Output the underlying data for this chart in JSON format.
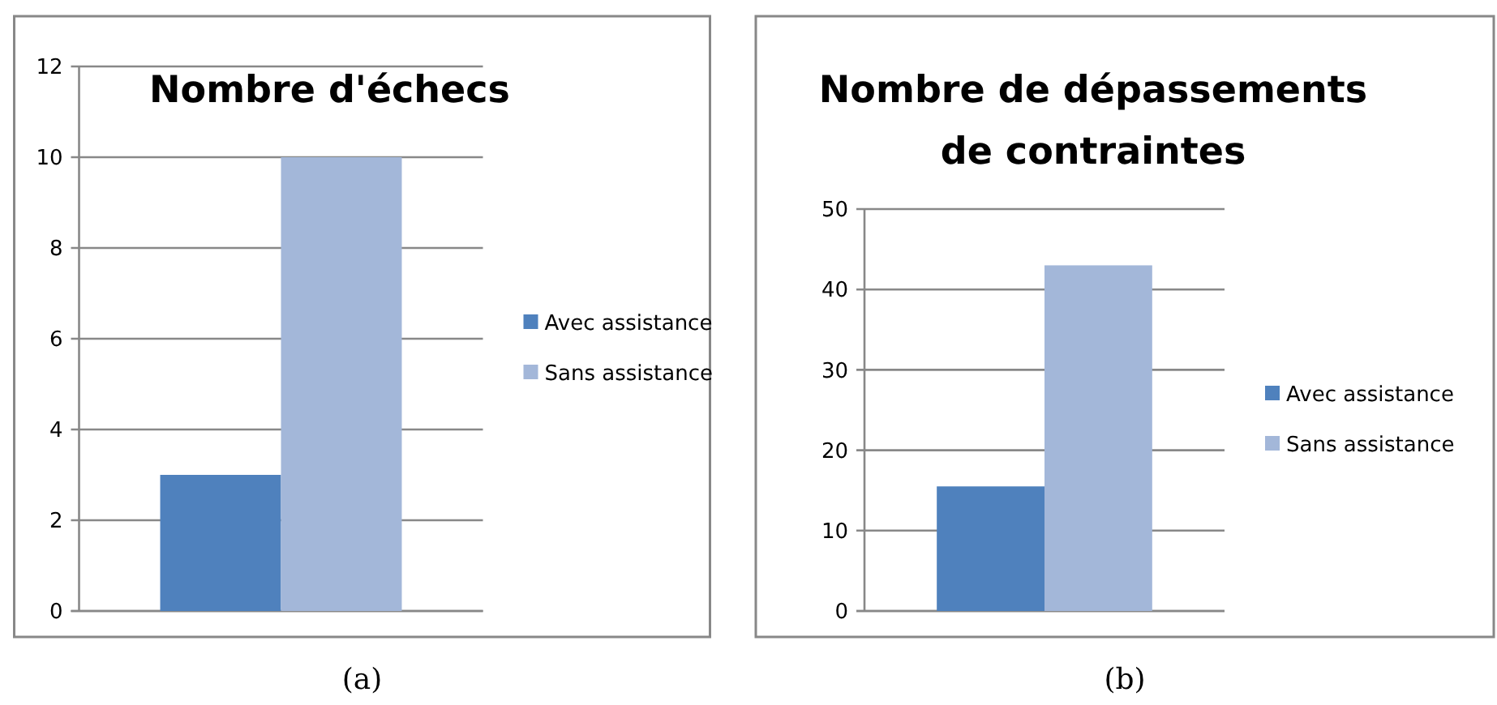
{
  "chart_data": [
    {
      "type": "bar",
      "title": "Nombre d'échecs",
      "categories": [
        null
      ],
      "series": [
        {
          "name": "Avec assistance",
          "color": "#4f81bd",
          "values": [
            3
          ]
        },
        {
          "name": "Sans assistance",
          "color": "#a3b7d9",
          "values": [
            10
          ]
        }
      ],
      "ylim": [
        0,
        12
      ],
      "yticks": [
        0,
        2,
        4,
        6,
        8,
        10,
        12
      ],
      "grid": "y",
      "legend": "right",
      "annotations": [
        "(a)"
      ]
    },
    {
      "type": "bar",
      "title": "Nombre de dépassements de contraintes",
      "categories": [
        null
      ],
      "series": [
        {
          "name": "Avec assistance",
          "color": "#4f81bd",
          "values": [
            15.5
          ]
        },
        {
          "name": "Sans assistance",
          "color": "#a3b7d9",
          "values": [
            43
          ]
        }
      ],
      "ylim": [
        0,
        50
      ],
      "yticks": [
        0,
        10,
        20,
        30,
        40,
        50
      ],
      "grid": "y",
      "legend": "right",
      "annotations": [
        "(b)"
      ]
    }
  ]
}
